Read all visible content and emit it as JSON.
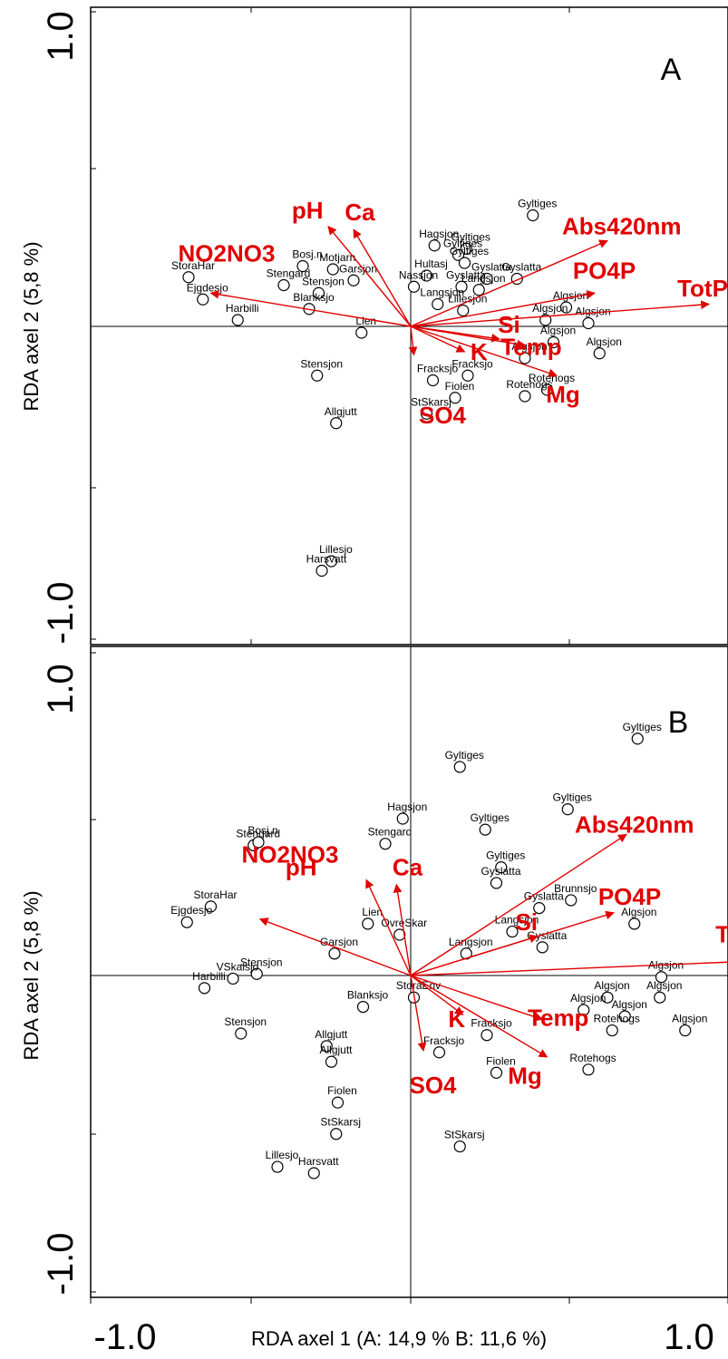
{
  "x_axis_title": "RDA axel 1 (A: 14,9 % B: 11,6 %)",
  "x_tick_labels": [
    "-1.0",
    "1.0"
  ],
  "chart_data": [
    {
      "type": "scatter",
      "panel": "A",
      "xlabel": "RDA axel 1 (A: 14,9 % B: 11,6 %)",
      "ylabel": "RDA axel 2 (5,8 %)",
      "xlim": [
        -1.0,
        1.0
      ],
      "ylim": [
        -1.0,
        1.0
      ],
      "y_tick_labels": [
        "1.0",
        "-1.0"
      ],
      "arrow_color": "#e00000",
      "arrows": [
        {
          "name": "pH",
          "x": -0.52,
          "y": 0.63,
          "lx": -0.65,
          "ly": 0.68
        },
        {
          "name": "Ca",
          "x": -0.36,
          "y": 0.61,
          "lx": -0.32,
          "ly": 0.67
        },
        {
          "name": "Abs420nm",
          "x": 1.24,
          "y": 0.54,
          "lx": 1.33,
          "ly": 0.58
        },
        {
          "name": "PO4P",
          "x": 1.16,
          "y": 0.21,
          "lx": 1.22,
          "ly": 0.3
        },
        {
          "name": "TotP",
          "x": 1.88,
          "y": 0.14,
          "lx": 1.84,
          "ly": 0.19
        },
        {
          "name": "NO2NO3",
          "x": -1.26,
          "y": 0.21,
          "lx": -1.16,
          "ly": 0.41
        },
        {
          "name": "Si",
          "x": 0.56,
          "y": -0.08,
          "lx": 0.62,
          "ly": -0.04
        },
        {
          "name": "Temp",
          "x": 0.72,
          "y": -0.12,
          "lx": 0.76,
          "ly": -0.18
        },
        {
          "name": "K",
          "x": 0.34,
          "y": -0.16,
          "lx": 0.43,
          "ly": -0.21
        },
        {
          "name": "Mg",
          "x": 0.92,
          "y": -0.31,
          "lx": 0.96,
          "ly": -0.48
        },
        {
          "name": "SO4",
          "x": 0.02,
          "y": -0.18,
          "lx": 0.2,
          "ly": -0.61
        }
      ],
      "sites": [
        {
          "label": "Gyltiges",
          "x": 0.77,
          "y": 0.7
        },
        {
          "label": "Hagsjon",
          "x": 0.15,
          "y": 0.51
        },
        {
          "label": "Gyltiges",
          "x": 0.35,
          "y": 0.49
        },
        {
          "label": "Gyltiges",
          "x": 0.3,
          "y": 0.45
        },
        {
          "label": "Gyltiges",
          "x": 0.34,
          "y": 0.4
        },
        {
          "label": "Hultasj",
          "x": 0.1,
          "y": 0.32
        },
        {
          "label": "Gyslatta",
          "x": 0.48,
          "y": 0.3
        },
        {
          "label": "Gyslatta",
          "x": 0.67,
          "y": 0.3
        },
        {
          "label": "Gyslatta",
          "x": 0.32,
          "y": 0.25
        },
        {
          "label": "Nassjon",
          "x": 0.02,
          "y": 0.25
        },
        {
          "label": "Langsjon",
          "x": 0.43,
          "y": 0.23
        },
        {
          "label": "Langsjon",
          "x": 0.17,
          "y": 0.14
        },
        {
          "label": "Lillesjon",
          "x": 0.33,
          "y": 0.1
        },
        {
          "label": "Algsjon",
          "x": 0.98,
          "y": 0.12
        },
        {
          "label": "Algsjon",
          "x": 0.85,
          "y": 0.04
        },
        {
          "label": "Algsjon",
          "x": 1.12,
          "y": 0.02
        },
        {
          "label": "Algsjon",
          "x": 0.9,
          "y": -0.1
        },
        {
          "label": "Algsjon",
          "x": 0.72,
          "y": -0.2
        },
        {
          "label": "Algsjon",
          "x": 1.19,
          "y": -0.17
        },
        {
          "label": "Rotehogs",
          "x": 0.86,
          "y": -0.4
        },
        {
          "label": "Rotehogs",
          "x": 0.72,
          "y": -0.44
        },
        {
          "label": "Fracksjo",
          "x": 0.36,
          "y": -0.31
        },
        {
          "label": "Fiolen",
          "x": 0.28,
          "y": -0.45
        },
        {
          "label": "StSkarsj",
          "x": 0.1,
          "y": -0.55
        },
        {
          "label": "Fracksjo",
          "x": 0.14,
          "y": -0.34
        },
        {
          "label": "Garsjon",
          "x": -0.36,
          "y": 0.29
        },
        {
          "label": "Motjarn",
          "x": -0.49,
          "y": 0.36
        },
        {
          "label": "Bosj.n",
          "x": -0.68,
          "y": 0.38
        },
        {
          "label": "Stengard",
          "x": -0.8,
          "y": 0.26
        },
        {
          "label": "Stensjon",
          "x": -0.58,
          "y": 0.21
        },
        {
          "label": "Blanksjo",
          "x": -0.64,
          "y": 0.11
        },
        {
          "label": "Ejgdesjo",
          "x": -1.31,
          "y": 0.17
        },
        {
          "label": "StoraHar",
          "x": -1.4,
          "y": 0.31
        },
        {
          "label": "Harbilli",
          "x": -1.09,
          "y": 0.04
        },
        {
          "label": "Lien",
          "x": -0.31,
          "y": -0.04
        },
        {
          "label": "Stensjon",
          "x": -0.59,
          "y": -0.31
        },
        {
          "label": "Allgjutt",
          "x": -0.47,
          "y": -0.61
        },
        {
          "label": "Lillesjo",
          "x": -0.5,
          "y": -1.48
        },
        {
          "label": "Harsvatt",
          "x": -0.56,
          "y": -1.54
        }
      ]
    },
    {
      "type": "scatter",
      "panel": "B",
      "xlabel": "RDA axel 1 (A: 14,9 % B: 11,6 %)",
      "ylabel": "RDA axel 2 (5,8 %)",
      "xlim": [
        -1.0,
        1.0
      ],
      "ylim": [
        -1.0,
        1.0
      ],
      "y_tick_labels": [
        "1.0",
        "-1.0"
      ],
      "arrow_color": "#e00000",
      "arrows": [
        {
          "name": "pH",
          "x": -0.28,
          "y": 0.61,
          "lx": -0.69,
          "ly": 0.64
        },
        {
          "name": "Ca",
          "x": -0.09,
          "y": 0.58,
          "lx": -0.02,
          "ly": 0.64
        },
        {
          "name": "Abs420nm",
          "x": 1.36,
          "y": 0.9,
          "lx": 1.41,
          "ly": 0.91
        },
        {
          "name": "PO4P",
          "x": 1.28,
          "y": 0.4,
          "lx": 1.38,
          "ly": 0.45
        },
        {
          "name": "TotP",
          "x": 2.11,
          "y": 0.09,
          "lx": 2.08,
          "ly": 0.21
        },
        {
          "name": "NO2NO3",
          "x": -0.95,
          "y": 0.36,
          "lx": -0.76,
          "ly": 0.72
        },
        {
          "name": "Si",
          "x": 0.8,
          "y": 0.25,
          "lx": 0.73,
          "ly": 0.29
        },
        {
          "name": "Temp",
          "x": 0.83,
          "y": -0.28,
          "lx": 0.93,
          "ly": -0.32
        },
        {
          "name": "K",
          "x": 0.33,
          "y": -0.25,
          "lx": 0.29,
          "ly": -0.33
        },
        {
          "name": "Mg",
          "x": 0.86,
          "y": -0.52,
          "lx": 0.72,
          "ly": -0.69
        },
        {
          "name": "SO4",
          "x": 0.08,
          "y": -0.48,
          "lx": 0.14,
          "ly": -0.75
        }
      ],
      "sites": [
        {
          "label": "Gyltiges",
          "x": 1.43,
          "y": 1.51
        },
        {
          "label": "Gyltiges",
          "x": 0.31,
          "y": 1.33
        },
        {
          "label": "Gyltiges",
          "x": 0.99,
          "y": 1.06
        },
        {
          "label": "Gyltiges",
          "x": 0.47,
          "y": 0.93
        },
        {
          "label": "Gyltiges",
          "x": 0.57,
          "y": 0.69
        },
        {
          "label": "Hagsjon",
          "x": -0.05,
          "y": 1.0
        },
        {
          "label": "Stengard",
          "x": -0.99,
          "y": 0.83
        },
        {
          "label": "Bosj.n",
          "x": -0.96,
          "y": 0.85
        },
        {
          "label": "Stengard",
          "x": -0.16,
          "y": 0.84
        },
        {
          "label": "Gyslatta",
          "x": 0.54,
          "y": 0.59
        },
        {
          "label": "Gyslatta",
          "x": 0.81,
          "y": 0.43
        },
        {
          "label": "Brunnsjo",
          "x": 1.01,
          "y": 0.48
        },
        {
          "label": "Langsjon",
          "x": 0.64,
          "y": 0.28
        },
        {
          "label": "Langsjon",
          "x": 0.35,
          "y": 0.14
        },
        {
          "label": "Gyslatta",
          "x": 0.83,
          "y": 0.18
        },
        {
          "label": "Algsjon",
          "x": 1.41,
          "y": 0.33
        },
        {
          "label": "Algsjon",
          "x": 1.58,
          "y": -0.01
        },
        {
          "label": "Algsjon",
          "x": 1.57,
          "y": -0.14
        },
        {
          "label": "Algsjon",
          "x": 1.24,
          "y": -0.14
        },
        {
          "label": "Algsjon",
          "x": 1.09,
          "y": -0.22
        },
        {
          "label": "Algsjon",
          "x": 1.35,
          "y": -0.26
        },
        {
          "label": "Algsjon",
          "x": 1.73,
          "y": -0.35
        },
        {
          "label": "Rotehogs",
          "x": 1.27,
          "y": -0.35
        },
        {
          "label": "Rotehogs",
          "x": 1.12,
          "y": -0.6
        },
        {
          "label": "Fracksjo",
          "x": 0.48,
          "y": -0.38
        },
        {
          "label": "Fracksjo",
          "x": 0.18,
          "y": -0.49
        },
        {
          "label": "Fiolen",
          "x": 0.54,
          "y": -0.62
        },
        {
          "label": "Fiolen",
          "x": -0.46,
          "y": -0.81
        },
        {
          "label": "StoraEnv",
          "x": 0.02,
          "y": -0.14
        },
        {
          "label": "Blanksjo",
          "x": -0.3,
          "y": -0.2
        },
        {
          "label": "StSkarsj",
          "x": -0.47,
          "y": -1.01
        },
        {
          "label": "StSkarsj",
          "x": 0.31,
          "y": -1.09
        },
        {
          "label": "Allgjutt",
          "x": -0.53,
          "y": -0.45
        },
        {
          "label": "Allgjutt",
          "x": -0.5,
          "y": -0.55
        },
        {
          "label": "StoraHar",
          "x": -1.26,
          "y": 0.44
        },
        {
          "label": "Ejgdesjo",
          "x": -1.41,
          "y": 0.34
        },
        {
          "label": "Stensjon",
          "x": -0.97,
          "y": 0.01
        },
        {
          "label": "Garsjon",
          "x": -0.48,
          "y": 0.14
        },
        {
          "label": "VSkalsjo",
          "x": -1.12,
          "y": -0.02
        },
        {
          "label": "Harbilli",
          "x": -1.3,
          "y": -0.08
        },
        {
          "label": "Stensjon",
          "x": -1.07,
          "y": -0.37
        },
        {
          "label": "Lien",
          "x": -0.27,
          "y": 0.33
        },
        {
          "label": "OvreSkar",
          "x": -0.07,
          "y": 0.26
        },
        {
          "label": "Lillesjo",
          "x": -0.84,
          "y": -1.22
        },
        {
          "label": "Harsvatt",
          "x": -0.61,
          "y": -1.26
        }
      ]
    }
  ]
}
